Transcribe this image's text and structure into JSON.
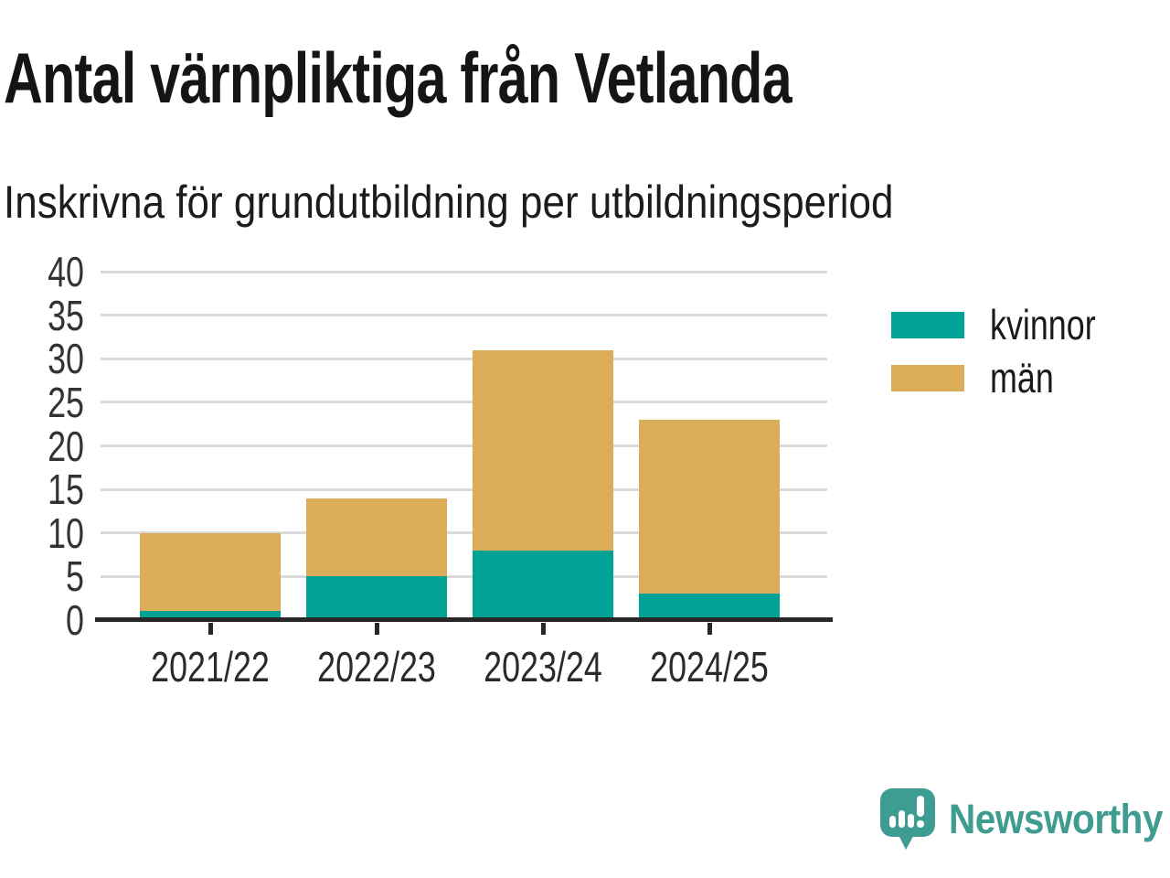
{
  "chart_data": {
    "type": "bar",
    "stacked": true,
    "title": "Antal värnpliktiga från Vetlanda",
    "subtitle": "Inskrivna för grundutbildning per utbildningsperiod",
    "categories": [
      "2021/22",
      "2022/23",
      "2023/24",
      "2024/25"
    ],
    "series": [
      {
        "name": "kvinnor",
        "color": "#00A296",
        "values": [
          1,
          5,
          8,
          3
        ]
      },
      {
        "name": "män",
        "color": "#DBAD58",
        "values": [
          9,
          9,
          23,
          20
        ]
      }
    ],
    "totals": [
      10,
      14,
      31,
      23
    ],
    "xlabel": "",
    "ylabel": "",
    "ylim": [
      0,
      40
    ],
    "yticks": [
      0,
      5,
      10,
      15,
      20,
      25,
      30,
      35,
      40
    ],
    "grid": true,
    "legend_position": "right",
    "axis_color": "#272727",
    "gridline_color": "#DADADA"
  },
  "branding": {
    "name": "Newsworthy",
    "color": "#3E9C91",
    "icon": "newsworthy-chart-bubble-icon"
  }
}
